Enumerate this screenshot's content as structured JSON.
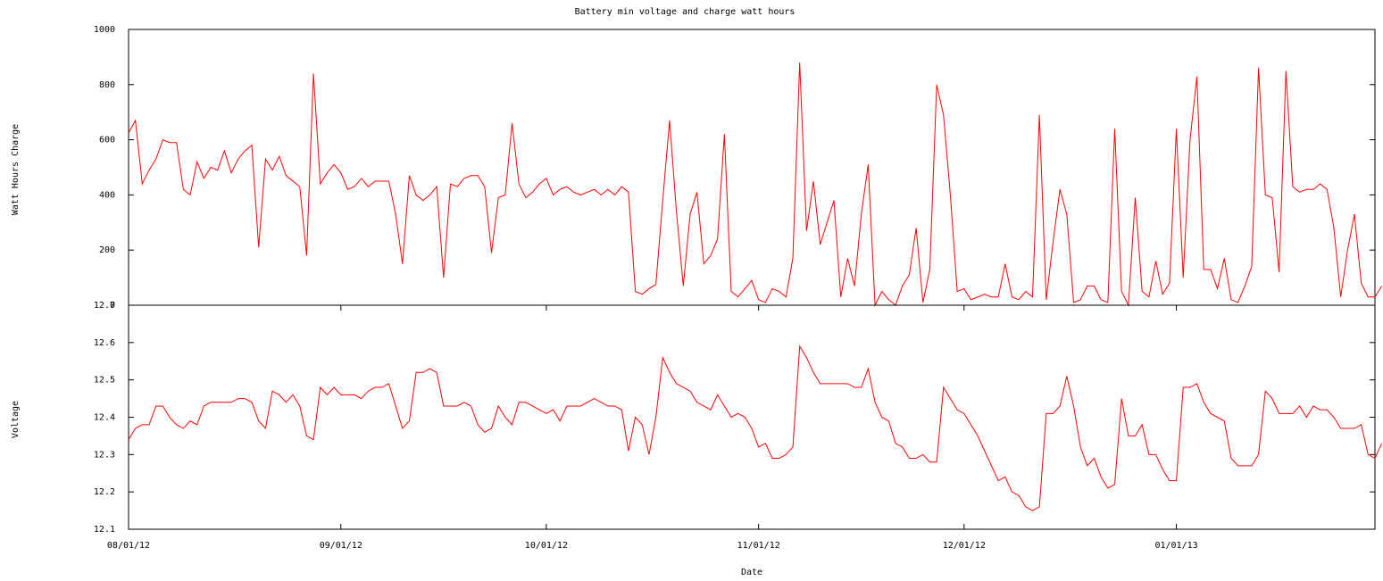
{
  "chart_data": [
    {
      "type": "line",
      "title": "Battery min voltage and charge watt hours",
      "ylabel": "Watt Hours Charge",
      "color": "#ff0000",
      "x": [
        "08/01/12",
        "08/02/12",
        "08/03/12",
        "08/04/12",
        "08/05/12",
        "08/06/12",
        "08/07/12",
        "08/08/12",
        "08/09/12",
        "08/10/12",
        "08/11/12",
        "08/12/12",
        "08/13/12",
        "08/14/12",
        "08/15/12",
        "08/16/12",
        "08/17/12",
        "08/18/12",
        "08/19/12",
        "08/20/12",
        "08/21/12",
        "08/22/12",
        "08/23/12",
        "08/24/12",
        "08/25/12",
        "08/26/12",
        "08/27/12",
        "08/28/12",
        "08/29/12",
        "08/30/12",
        "08/31/12",
        "09/01/12",
        "09/02/12",
        "09/03/12",
        "09/04/12",
        "09/05/12",
        "09/06/12",
        "09/07/12",
        "09/08/12",
        "09/09/12",
        "09/10/12",
        "09/11/12",
        "09/12/12",
        "09/13/12",
        "09/14/12",
        "09/15/12",
        "09/16/12",
        "09/17/12",
        "09/18/12",
        "09/19/12",
        "09/20/12",
        "09/21/12",
        "09/22/12",
        "09/23/12",
        "09/24/12",
        "09/25/12",
        "09/26/12",
        "09/27/12",
        "09/28/12",
        "09/29/12",
        "09/30/12",
        "10/01/12",
        "10/02/12",
        "10/03/12",
        "10/04/12",
        "10/05/12",
        "10/06/12",
        "10/07/12",
        "10/08/12",
        "10/09/12",
        "10/10/12",
        "10/11/12",
        "10/12/12",
        "10/13/12",
        "10/14/12",
        "10/15/12",
        "10/16/12",
        "10/17/12",
        "10/18/12",
        "10/19/12",
        "10/20/12",
        "10/21/12",
        "10/22/12",
        "10/23/12",
        "10/24/12",
        "10/25/12",
        "10/26/12",
        "10/27/12",
        "10/28/12",
        "10/29/12",
        "10/30/12",
        "10/31/12",
        "11/01/12",
        "11/02/12",
        "11/03/12",
        "11/04/12",
        "11/05/12",
        "11/06/12",
        "11/07/12",
        "11/08/12",
        "11/09/12",
        "11/10/12",
        "11/11/12",
        "11/12/12",
        "11/13/12",
        "11/14/12",
        "11/15/12",
        "11/16/12",
        "11/17/12",
        "11/18/12",
        "11/19/12",
        "11/20/12",
        "11/21/12",
        "11/22/12",
        "11/23/12",
        "11/24/12",
        "11/25/12",
        "11/26/12",
        "11/27/12",
        "11/28/12",
        "11/29/12",
        "11/30/12",
        "12/01/12",
        "12/02/12",
        "12/03/12",
        "12/04/12",
        "12/05/12",
        "12/06/12",
        "12/07/12",
        "12/08/12",
        "12/09/12",
        "12/10/12",
        "12/11/12",
        "12/12/12",
        "12/13/12",
        "12/14/12",
        "12/15/12",
        "12/16/12",
        "12/17/12",
        "12/18/12",
        "12/19/12",
        "12/20/12",
        "12/21/12",
        "12/22/12",
        "12/23/12",
        "12/24/12",
        "12/25/12",
        "12/26/12",
        "12/27/12",
        "12/28/12",
        "12/29/12",
        "12/30/12",
        "12/31/12",
        "01/01/13",
        "01/02/13",
        "01/03/13",
        "01/04/13",
        "01/05/13",
        "01/06/13",
        "01/07/13",
        "01/08/13",
        "01/09/13",
        "01/10/13",
        "01/11/13",
        "01/12/13",
        "01/13/13",
        "01/14/13",
        "01/15/13",
        "01/16/13",
        "01/17/13",
        "01/18/13",
        "01/19/13",
        "01/20/13",
        "01/21/13",
        "01/22/13",
        "01/23/13",
        "01/24/13",
        "01/25/13",
        "01/26/13",
        "01/27/13",
        "01/28/13",
        "01/29/13",
        "01/30/13",
        "01/31/13"
      ],
      "values": [
        625,
        670,
        440,
        490,
        530,
        600,
        590,
        590,
        420,
        400,
        520,
        460,
        500,
        490,
        560,
        480,
        530,
        560,
        580,
        210,
        530,
        490,
        540,
        470,
        450,
        430,
        180,
        840,
        440,
        480,
        510,
        480,
        420,
        430,
        460,
        430,
        450,
        450,
        450,
        330,
        150,
        470,
        400,
        380,
        400,
        430,
        100,
        440,
        430,
        460,
        470,
        470,
        430,
        190,
        390,
        400,
        660,
        440,
        390,
        410,
        440,
        460,
        400,
        420,
        430,
        410,
        400,
        410,
        420,
        400,
        420,
        400,
        430,
        410,
        50,
        40,
        60,
        75,
        380,
        670,
        340,
        70,
        330,
        410,
        150,
        180,
        240,
        620,
        50,
        30,
        60,
        90,
        20,
        10,
        60,
        50,
        30,
        170,
        880,
        270,
        450,
        220,
        300,
        380,
        30,
        170,
        70,
        330,
        510,
        0,
        50,
        20,
        0,
        70,
        110,
        280,
        10,
        130,
        800,
        690,
        400,
        50,
        60,
        20,
        30,
        40,
        30,
        30,
        150,
        30,
        20,
        50,
        30,
        690,
        20,
        230,
        420,
        330,
        10,
        20,
        70,
        70,
        20,
        10,
        640,
        50,
        0,
        390,
        50,
        30,
        160,
        40,
        80,
        640,
        100,
        600,
        830,
        130,
        130,
        60,
        170,
        20,
        10,
        70,
        140,
        860,
        400,
        390,
        120,
        850,
        430,
        410,
        420,
        420,
        440,
        420,
        280,
        30,
        200,
        330,
        80,
        30,
        30,
        70
      ],
      "xlim": [
        "08/01/12",
        "01/30/13"
      ],
      "ylim": [
        0,
        1000
      ],
      "yticks": [
        0,
        200,
        400,
        600,
        800,
        1000
      ]
    },
    {
      "type": "line",
      "ylabel": "Voltage",
      "xlabel": "Date",
      "color": "#ff0000",
      "x": [
        "08/01/12",
        "08/02/12",
        "08/03/12",
        "08/04/12",
        "08/05/12",
        "08/06/12",
        "08/07/12",
        "08/08/12",
        "08/09/12",
        "08/10/12",
        "08/11/12",
        "08/12/12",
        "08/13/12",
        "08/14/12",
        "08/15/12",
        "08/16/12",
        "08/17/12",
        "08/18/12",
        "08/19/12",
        "08/20/12",
        "08/21/12",
        "08/22/12",
        "08/23/12",
        "08/24/12",
        "08/25/12",
        "08/26/12",
        "08/27/12",
        "08/28/12",
        "08/29/12",
        "08/30/12",
        "08/31/12",
        "09/01/12",
        "09/02/12",
        "09/03/12",
        "09/04/12",
        "09/05/12",
        "09/06/12",
        "09/07/12",
        "09/08/12",
        "09/09/12",
        "09/10/12",
        "09/11/12",
        "09/12/12",
        "09/13/12",
        "09/14/12",
        "09/15/12",
        "09/16/12",
        "09/17/12",
        "09/18/12",
        "09/19/12",
        "09/20/12",
        "09/21/12",
        "09/22/12",
        "09/23/12",
        "09/24/12",
        "09/25/12",
        "09/26/12",
        "09/27/12",
        "09/28/12",
        "09/29/12",
        "09/30/12",
        "10/01/12",
        "10/02/12",
        "10/03/12",
        "10/04/12",
        "10/05/12",
        "10/06/12",
        "10/07/12",
        "10/08/12",
        "10/09/12",
        "10/10/12",
        "10/11/12",
        "10/12/12",
        "10/13/12",
        "10/14/12",
        "10/15/12",
        "10/16/12",
        "10/17/12",
        "10/18/12",
        "10/19/12",
        "10/20/12",
        "10/21/12",
        "10/22/12",
        "10/23/12",
        "10/24/12",
        "10/25/12",
        "10/26/12",
        "10/27/12",
        "10/28/12",
        "10/29/12",
        "10/30/12",
        "10/31/12",
        "11/01/12",
        "11/02/12",
        "11/03/12",
        "11/04/12",
        "11/05/12",
        "11/06/12",
        "11/07/12",
        "11/08/12",
        "11/09/12",
        "11/10/12",
        "11/11/12",
        "11/12/12",
        "11/13/12",
        "11/14/12",
        "11/15/12",
        "11/16/12",
        "11/17/12",
        "11/18/12",
        "11/19/12",
        "11/20/12",
        "11/21/12",
        "11/22/12",
        "11/23/12",
        "11/24/12",
        "11/25/12",
        "11/26/12",
        "11/27/12",
        "11/28/12",
        "11/29/12",
        "11/30/12",
        "12/01/12",
        "12/02/12",
        "12/03/12",
        "12/04/12",
        "12/05/12",
        "12/06/12",
        "12/07/12",
        "12/08/12",
        "12/09/12",
        "12/10/12",
        "12/11/12",
        "12/12/12",
        "12/13/12",
        "12/14/12",
        "12/15/12",
        "12/16/12",
        "12/17/12",
        "12/18/12",
        "12/19/12",
        "12/20/12",
        "12/21/12",
        "12/22/12",
        "12/23/12",
        "12/24/12",
        "12/25/12",
        "12/26/12",
        "12/27/12",
        "12/28/12",
        "12/29/12",
        "12/30/12",
        "12/31/12",
        "01/01/13",
        "01/02/13",
        "01/03/13",
        "01/04/13",
        "01/05/13",
        "01/06/13",
        "01/07/13",
        "01/08/13",
        "01/09/13",
        "01/10/13",
        "01/11/13",
        "01/12/13",
        "01/13/13",
        "01/14/13",
        "01/15/13",
        "01/16/13",
        "01/17/13",
        "01/18/13",
        "01/19/13",
        "01/20/13",
        "01/21/13",
        "01/22/13",
        "01/23/13",
        "01/24/13",
        "01/25/13",
        "01/26/13",
        "01/27/13",
        "01/28/13",
        "01/29/13",
        "01/30/13",
        "01/31/13"
      ],
      "values": [
        12.34,
        12.37,
        12.38,
        12.38,
        12.43,
        12.43,
        12.4,
        12.38,
        12.37,
        12.39,
        12.38,
        12.43,
        12.44,
        12.44,
        12.44,
        12.44,
        12.45,
        12.45,
        12.44,
        12.39,
        12.37,
        12.47,
        12.46,
        12.44,
        12.46,
        12.43,
        12.35,
        12.34,
        12.48,
        12.46,
        12.48,
        12.46,
        12.46,
        12.46,
        12.45,
        12.47,
        12.48,
        12.48,
        12.49,
        12.43,
        12.37,
        12.39,
        12.52,
        12.52,
        12.53,
        12.52,
        12.43,
        12.43,
        12.43,
        12.44,
        12.43,
        12.38,
        12.36,
        12.37,
        12.43,
        12.4,
        12.38,
        12.44,
        12.44,
        12.43,
        12.42,
        12.41,
        12.42,
        12.39,
        12.43,
        12.43,
        12.43,
        12.44,
        12.45,
        12.44,
        12.43,
        12.43,
        12.42,
        12.31,
        12.4,
        12.38,
        12.3,
        12.4,
        12.56,
        12.52,
        12.49,
        12.48,
        12.47,
        12.44,
        12.43,
        12.42,
        12.46,
        12.43,
        12.4,
        12.41,
        12.4,
        12.37,
        12.32,
        12.33,
        12.29,
        12.29,
        12.3,
        12.32,
        12.59,
        12.56,
        12.52,
        12.49,
        12.49,
        12.49,
        12.49,
        12.49,
        12.48,
        12.48,
        12.53,
        12.44,
        12.4,
        12.39,
        12.33,
        12.32,
        12.29,
        12.29,
        12.3,
        12.28,
        12.28,
        12.48,
        12.45,
        12.42,
        12.41,
        12.38,
        12.35,
        12.31,
        12.27,
        12.23,
        12.24,
        12.2,
        12.19,
        12.16,
        12.15,
        12.16,
        12.41,
        12.41,
        12.43,
        12.51,
        12.43,
        12.32,
        12.27,
        12.29,
        12.24,
        12.21,
        12.22,
        12.45,
        12.35,
        12.35,
        12.38,
        12.3,
        12.3,
        12.26,
        12.23,
        12.23,
        12.48,
        12.48,
        12.49,
        12.44,
        12.41,
        12.4,
        12.39,
        12.29,
        12.27,
        12.27,
        12.27,
        12.3,
        12.47,
        12.45,
        12.41,
        12.41,
        12.41,
        12.43,
        12.4,
        12.43,
        12.42,
        12.42,
        12.4,
        12.37,
        12.37,
        12.37,
        12.38,
        12.3,
        12.29,
        12.33
      ],
      "xlim": [
        "08/01/12",
        "01/30/13"
      ],
      "xticks": [
        "08/01/12",
        "09/01/12",
        "10/01/12",
        "11/01/12",
        "12/01/12",
        "01/01/13"
      ],
      "ylim": [
        12.1,
        12.7
      ],
      "yticks": [
        12.1,
        12.2,
        12.3,
        12.4,
        12.5,
        12.6,
        12.7
      ]
    }
  ]
}
